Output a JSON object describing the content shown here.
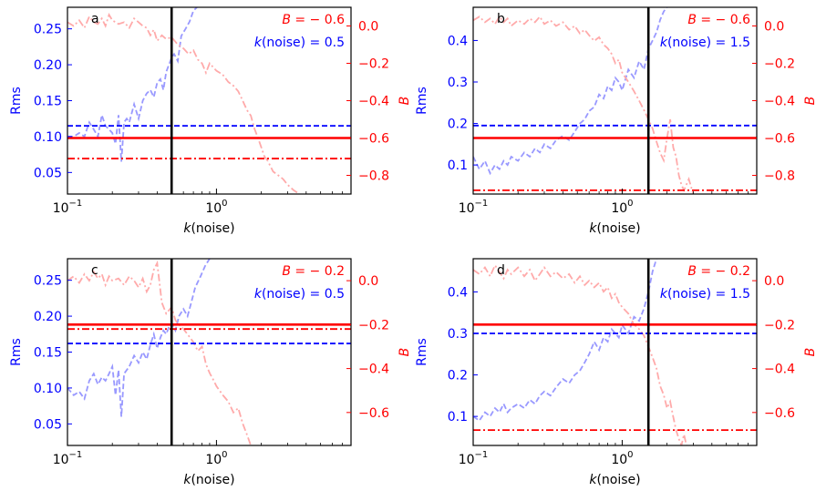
{
  "chart_data": [
    {
      "panel_label": "a",
      "type": "line",
      "xscale": "log",
      "xlim": [
        0.1,
        8.0
      ],
      "xlabel_var": "k",
      "xlabel_rest": "(noise)",
      "xticks": [
        {
          "v": 0.1,
          "b": "10",
          "e": "−1"
        },
        {
          "v": 1,
          "b": "10",
          "e": "0"
        }
      ],
      "ylabel_left": "Rms",
      "ylim_left": [
        0.02,
        0.28
      ],
      "yticks_left": [
        "0.05",
        "0.10",
        "0.15",
        "0.20",
        "0.25"
      ],
      "ylabel_right": "B",
      "ylim_right": [
        -0.9,
        0.1
      ],
      "yticks_right": [
        "0.0",
        "−0.2",
        "−0.4",
        "−0.6",
        "−0.8"
      ],
      "ann_b": "= − 0.6",
      "ann_k": "(noise) = 0.5",
      "k_noise": 0.5,
      "rms_ref": 0.115,
      "b_ref": -0.6,
      "b_pred": -0.71,
      "series": [
        {
          "axis": "left",
          "style": "dashed-blue",
          "x": [
            0.1,
            0.11,
            0.12,
            0.13,
            0.14,
            0.15,
            0.16,
            0.17,
            0.18,
            0.19,
            0.2,
            0.21,
            0.22,
            0.23,
            0.24,
            0.25,
            0.26,
            0.28,
            0.3,
            0.32,
            0.34,
            0.36,
            0.38,
            0.4,
            0.42,
            0.44,
            0.46,
            0.48,
            0.5,
            0.52,
            0.55,
            0.58,
            0.62,
            0.66,
            0.7,
            0.74
          ],
          "y": [
            0.1,
            0.1,
            0.105,
            0.1,
            0.12,
            0.11,
            0.1,
            0.13,
            0.115,
            0.11,
            0.105,
            0.09,
            0.13,
            0.065,
            0.12,
            0.125,
            0.12,
            0.145,
            0.125,
            0.15,
            0.16,
            0.165,
            0.155,
            0.175,
            0.18,
            0.165,
            0.19,
            0.2,
            0.21,
            0.215,
            0.205,
            0.24,
            0.25,
            0.26,
            0.275,
            0.28
          ]
        },
        {
          "axis": "right",
          "style": "dashdot-pink",
          "x": [
            0.1,
            0.11,
            0.12,
            0.13,
            0.14,
            0.15,
            0.16,
            0.17,
            0.18,
            0.19,
            0.2,
            0.22,
            0.24,
            0.26,
            0.28,
            0.3,
            0.32,
            0.34,
            0.36,
            0.38,
            0.4,
            0.43,
            0.46,
            0.5,
            0.55,
            0.6,
            0.65,
            0.7,
            0.75,
            0.8,
            0.85,
            0.9,
            1.0,
            1.1,
            1.2,
            1.3,
            1.4,
            1.5,
            1.6,
            1.7,
            1.8,
            1.9,
            2.0,
            2.1,
            2.2,
            2.4,
            2.6,
            2.8,
            3.0,
            3.3,
            3.6
          ],
          "y": [
            0.02,
            0.0,
            0.03,
            -0.01,
            0.05,
            0.02,
            0.01,
            0.04,
            0.0,
            0.06,
            0.03,
            0.01,
            0.02,
            -0.01,
            0.04,
            0.02,
            0.0,
            -0.01,
            -0.05,
            -0.02,
            -0.08,
            -0.05,
            -0.07,
            -0.06,
            -0.1,
            -0.12,
            -0.15,
            -0.13,
            -0.18,
            -0.2,
            -0.25,
            -0.2,
            -0.24,
            -0.26,
            -0.3,
            -0.32,
            -0.35,
            -0.4,
            -0.45,
            -0.48,
            -0.55,
            -0.6,
            -0.65,
            -0.7,
            -0.72,
            -0.78,
            -0.8,
            -0.82,
            -0.85,
            -0.88,
            -0.9
          ]
        }
      ]
    },
    {
      "panel_label": "b",
      "type": "line",
      "xscale": "log",
      "xlim": [
        0.1,
        8.0
      ],
      "xlabel_var": "k",
      "xlabel_rest": "(noise)",
      "xticks": [
        {
          "v": 0.1,
          "b": "10",
          "e": "−1"
        },
        {
          "v": 1,
          "b": "10",
          "e": "0"
        }
      ],
      "ylabel_left": "Rms",
      "ylim_left": [
        0.03,
        0.48
      ],
      "yticks_left": [
        "0.1",
        "0.2",
        "0.3",
        "0.4"
      ],
      "ylabel_right": "B",
      "ylim_right": [
        -0.9,
        0.1
      ],
      "yticks_right": [
        "0.0",
        "−0.2",
        "−0.4",
        "−0.6",
        "−0.8"
      ],
      "ann_b": "= − 0.6",
      "ann_k": "(noise) = 1.5",
      "k_noise": 1.5,
      "rms_ref": 0.195,
      "b_ref": -0.6,
      "b_pred": -0.88,
      "series": [
        {
          "axis": "left",
          "style": "dashed-blue",
          "x": [
            0.1,
            0.11,
            0.12,
            0.13,
            0.14,
            0.15,
            0.16,
            0.17,
            0.18,
            0.2,
            0.22,
            0.24,
            0.26,
            0.28,
            0.3,
            0.33,
            0.36,
            0.4,
            0.44,
            0.48,
            0.52,
            0.56,
            0.6,
            0.65,
            0.7,
            0.75,
            0.8,
            0.85,
            0.9,
            0.95,
            1.0,
            1.1,
            1.2,
            1.3,
            1.4,
            1.5,
            1.6,
            1.7,
            1.8,
            1.9,
            2.0
          ],
          "y": [
            0.12,
            0.09,
            0.11,
            0.08,
            0.1,
            0.09,
            0.11,
            0.1,
            0.12,
            0.11,
            0.13,
            0.12,
            0.14,
            0.13,
            0.15,
            0.14,
            0.16,
            0.17,
            0.16,
            0.18,
            0.2,
            0.21,
            0.23,
            0.24,
            0.27,
            0.26,
            0.29,
            0.28,
            0.31,
            0.3,
            0.28,
            0.33,
            0.31,
            0.35,
            0.33,
            0.38,
            0.4,
            0.42,
            0.45,
            0.47,
            0.48
          ]
        },
        {
          "axis": "right",
          "style": "dashdot-pink",
          "x": [
            0.1,
            0.11,
            0.12,
            0.13,
            0.14,
            0.15,
            0.16,
            0.17,
            0.18,
            0.2,
            0.22,
            0.24,
            0.26,
            0.28,
            0.3,
            0.33,
            0.36,
            0.4,
            0.44,
            0.48,
            0.52,
            0.56,
            0.6,
            0.65,
            0.7,
            0.75,
            0.8,
            0.85,
            0.9,
            0.95,
            1.0,
            1.1,
            1.2,
            1.3,
            1.4,
            1.5,
            1.6,
            1.7,
            1.8,
            1.9,
            2.0,
            2.1,
            2.2,
            2.3,
            2.4,
            2.5,
            2.6,
            2.8,
            3.0
          ],
          "y": [
            0.03,
            0.05,
            0.02,
            0.04,
            0.01,
            0.05,
            0.02,
            0.04,
            0.0,
            0.03,
            0.01,
            0.04,
            0.02,
            0.05,
            0.01,
            0.03,
            0.0,
            0.02,
            -0.02,
            0.0,
            -0.04,
            -0.02,
            -0.05,
            -0.08,
            -0.06,
            -0.1,
            -0.12,
            -0.15,
            -0.2,
            -0.18,
            -0.25,
            -0.3,
            -0.35,
            -0.4,
            -0.45,
            -0.5,
            -0.55,
            -0.62,
            -0.68,
            -0.72,
            -0.6,
            -0.5,
            -0.65,
            -0.7,
            -0.8,
            -0.85,
            -0.88,
            -0.82,
            -0.9
          ]
        }
      ]
    },
    {
      "panel_label": "c",
      "type": "line",
      "xscale": "log",
      "xlim": [
        0.1,
        8.0
      ],
      "xlabel_var": "k",
      "xlabel_rest": "(noise)",
      "xticks": [
        {
          "v": 0.1,
          "b": "10",
          "e": "−1"
        },
        {
          "v": 1,
          "b": "10",
          "e": "0"
        }
      ],
      "ylabel_left": "Rms",
      "ylim_left": [
        0.02,
        0.28
      ],
      "yticks_left": [
        "0.05",
        "0.10",
        "0.15",
        "0.20",
        "0.25"
      ],
      "ylabel_right": "B",
      "ylim_right": [
        -0.75,
        0.1
      ],
      "yticks_right": [
        "0.0",
        "−0.2",
        "−0.4",
        "−0.6"
      ],
      "ann_b": "= − 0.2",
      "ann_k": "(noise) = 0.5",
      "k_noise": 0.5,
      "rms_ref": 0.162,
      "b_ref": -0.2,
      "b_pred": -0.22,
      "series": [
        {
          "axis": "left",
          "style": "dashed-blue",
          "x": [
            0.1,
            0.11,
            0.12,
            0.13,
            0.14,
            0.15,
            0.16,
            0.17,
            0.18,
            0.19,
            0.2,
            0.21,
            0.22,
            0.23,
            0.24,
            0.26,
            0.28,
            0.3,
            0.32,
            0.34,
            0.36,
            0.38,
            0.4,
            0.42,
            0.44,
            0.46,
            0.48,
            0.5,
            0.53,
            0.56,
            0.6,
            0.64,
            0.68,
            0.72,
            0.78,
            0.84,
            0.9
          ],
          "y": [
            0.1,
            0.09,
            0.095,
            0.085,
            0.11,
            0.12,
            0.105,
            0.115,
            0.11,
            0.12,
            0.13,
            0.09,
            0.125,
            0.06,
            0.12,
            0.13,
            0.145,
            0.135,
            0.15,
            0.14,
            0.16,
            0.175,
            0.155,
            0.17,
            0.18,
            0.175,
            0.185,
            0.19,
            0.18,
            0.2,
            0.21,
            0.2,
            0.22,
            0.24,
            0.255,
            0.27,
            0.28
          ]
        },
        {
          "axis": "right",
          "style": "dashdot-pink",
          "x": [
            0.1,
            0.11,
            0.12,
            0.13,
            0.14,
            0.15,
            0.16,
            0.17,
            0.18,
            0.19,
            0.2,
            0.22,
            0.24,
            0.26,
            0.28,
            0.3,
            0.32,
            0.34,
            0.36,
            0.38,
            0.4,
            0.43,
            0.46,
            0.5,
            0.53,
            0.56,
            0.6,
            0.65,
            0.7,
            0.75,
            0.8,
            0.85,
            0.9,
            0.95,
            1.0,
            1.1,
            1.2,
            1.3,
            1.4,
            1.5,
            1.6,
            1.7
          ],
          "y": [
            0.0,
            0.02,
            -0.01,
            0.03,
            0.0,
            0.04,
            0.01,
            0.03,
            -0.02,
            0.02,
            0.0,
            0.01,
            -0.02,
            0.02,
            0.0,
            -0.03,
            0.01,
            -0.05,
            -0.02,
            0.05,
            0.08,
            -0.1,
            -0.15,
            -0.12,
            -0.18,
            -0.2,
            -0.22,
            -0.25,
            -0.28,
            -0.32,
            -0.3,
            -0.38,
            -0.42,
            -0.45,
            -0.48,
            -0.52,
            -0.55,
            -0.6,
            -0.58,
            -0.65,
            -0.7,
            -0.75
          ]
        }
      ]
    },
    {
      "panel_label": "d",
      "type": "line",
      "xscale": "log",
      "xlim": [
        0.1,
        8.0
      ],
      "xlabel_var": "k",
      "xlabel_rest": "(noise)",
      "xticks": [
        {
          "v": 0.1,
          "b": "10",
          "e": "−1"
        },
        {
          "v": 1,
          "b": "10",
          "e": "0"
        }
      ],
      "ylabel_left": "Rms",
      "ylim_left": [
        0.03,
        0.48
      ],
      "yticks_left": [
        "0.1",
        "0.2",
        "0.3",
        "0.4"
      ],
      "ylabel_right": "B",
      "ylim_right": [
        -0.75,
        0.1
      ],
      "yticks_right": [
        "0.0",
        "−0.2",
        "−0.4",
        "−0.6"
      ],
      "ann_b": "= − 0.2",
      "ann_k": "(noise) = 1.5",
      "k_noise": 1.5,
      "rms_ref": 0.3,
      "b_ref": -0.2,
      "b_pred": -0.68,
      "series": [
        {
          "axis": "left",
          "style": "dashed-blue",
          "x": [
            0.1,
            0.11,
            0.12,
            0.13,
            0.14,
            0.15,
            0.16,
            0.17,
            0.18,
            0.2,
            0.22,
            0.24,
            0.26,
            0.28,
            0.3,
            0.33,
            0.36,
            0.4,
            0.44,
            0.48,
            0.52,
            0.56,
            0.6,
            0.65,
            0.7,
            0.75,
            0.8,
            0.85,
            0.9,
            0.95,
            1.0,
            1.1,
            1.2,
            1.3,
            1.4,
            1.5,
            1.6,
            1.7
          ],
          "y": [
            0.1,
            0.09,
            0.11,
            0.1,
            0.12,
            0.11,
            0.13,
            0.11,
            0.12,
            0.13,
            0.12,
            0.14,
            0.13,
            0.15,
            0.16,
            0.15,
            0.17,
            0.19,
            0.18,
            0.2,
            0.21,
            0.23,
            0.25,
            0.28,
            0.26,
            0.29,
            0.28,
            0.31,
            0.3,
            0.29,
            0.32,
            0.3,
            0.34,
            0.33,
            0.36,
            0.4,
            0.45,
            0.48
          ]
        },
        {
          "axis": "right",
          "style": "dashdot-pink",
          "x": [
            0.1,
            0.11,
            0.12,
            0.13,
            0.14,
            0.15,
            0.16,
            0.17,
            0.18,
            0.2,
            0.22,
            0.24,
            0.26,
            0.28,
            0.3,
            0.33,
            0.36,
            0.4,
            0.44,
            0.48,
            0.52,
            0.56,
            0.6,
            0.65,
            0.7,
            0.75,
            0.8,
            0.85,
            0.9,
            0.95,
            1.0,
            1.1,
            1.2,
            1.3,
            1.4,
            1.5,
            1.6,
            1.7,
            1.8,
            1.9,
            2.0,
            2.1,
            2.2,
            2.3,
            2.4,
            2.5,
            2.6,
            2.7
          ],
          "y": [
            0.05,
            0.03,
            0.06,
            0.02,
            0.07,
            0.04,
            0.01,
            0.05,
            0.03,
            0.06,
            0.02,
            0.05,
            0.0,
            0.03,
            0.06,
            0.02,
            0.04,
            0.01,
            0.03,
            -0.01,
            0.02,
            -0.02,
            0.0,
            -0.03,
            -0.01,
            -0.05,
            -0.03,
            -0.08,
            -0.06,
            -0.1,
            -0.12,
            -0.15,
            -0.2,
            -0.22,
            -0.25,
            -0.3,
            -0.35,
            -0.4,
            -0.48,
            -0.52,
            -0.58,
            -0.55,
            -0.62,
            -0.68,
            -0.72,
            -0.75,
            -0.7,
            -0.75
          ]
        }
      ]
    }
  ],
  "colors": {
    "blue": "#0000ff",
    "red": "#ff0000",
    "light_blue": "#9999ff",
    "pink": "#ffaaaa",
    "black": "#000000"
  }
}
